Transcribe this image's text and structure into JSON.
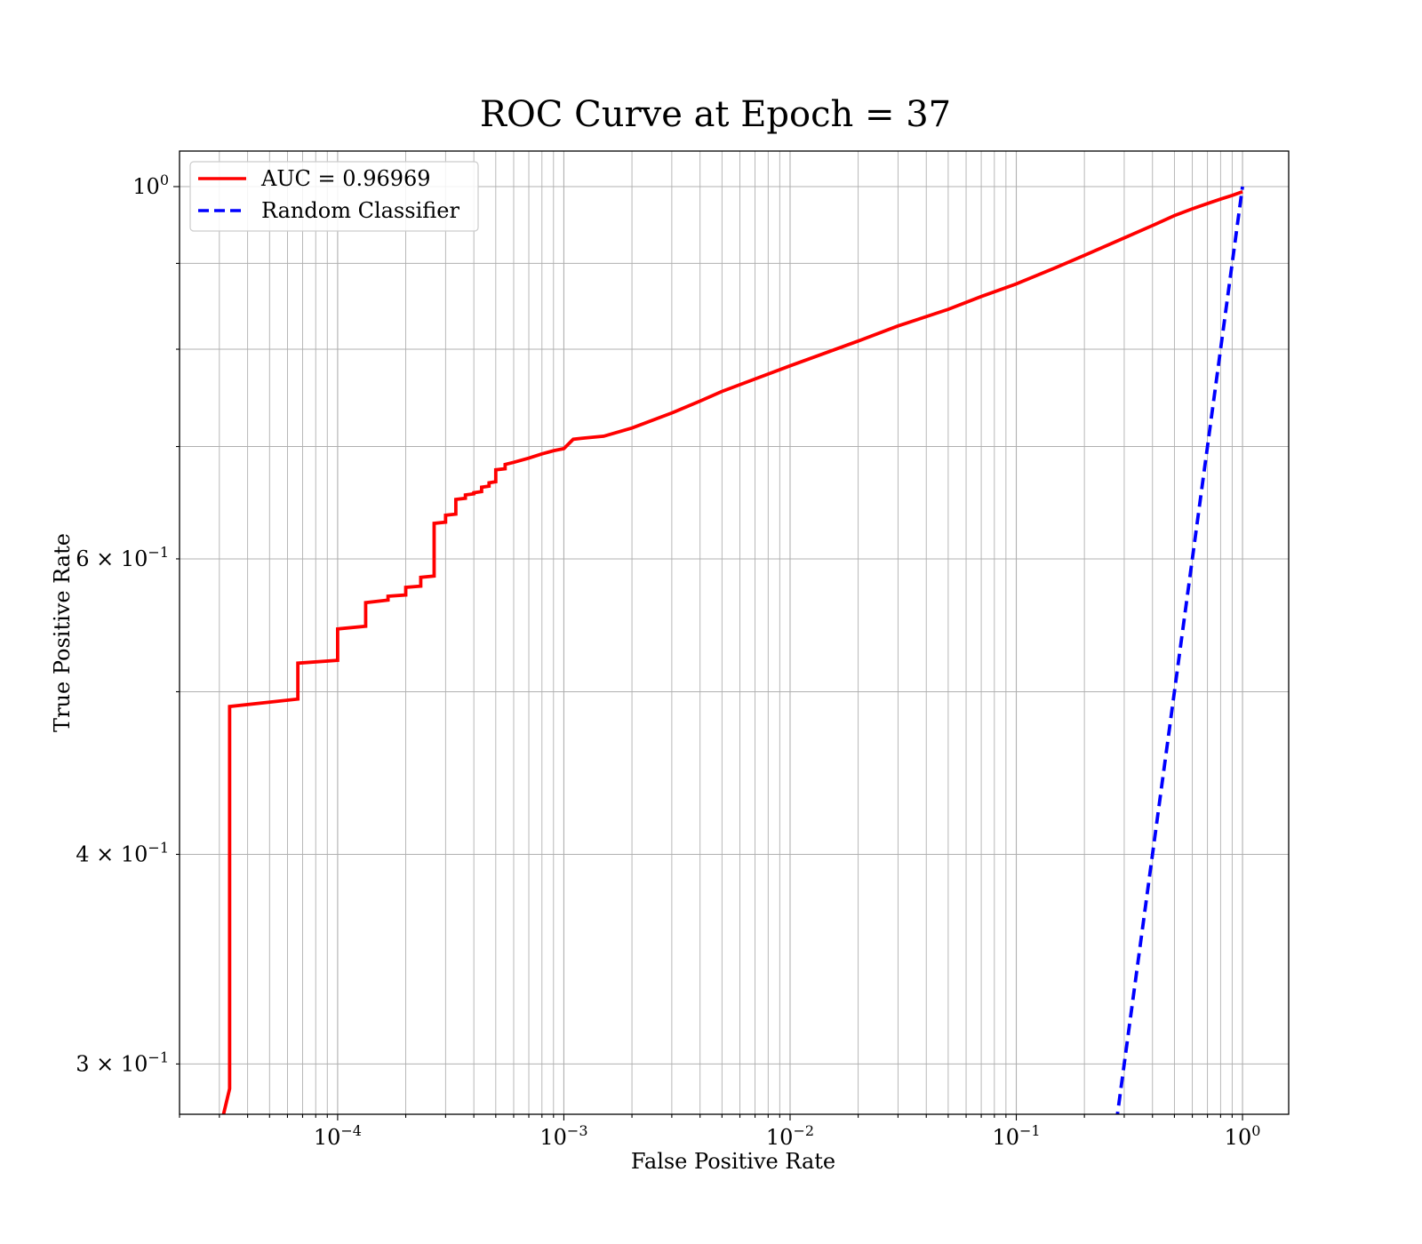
{
  "chart_data": {
    "type": "line",
    "title": "ROC Curve at Epoch = 37",
    "xlabel": "False Positive Rate",
    "ylabel": "True Positive Rate",
    "xscale": "log",
    "yscale": "log",
    "xlim": [
      2e-05,
      1.6
    ],
    "ylim": [
      0.28,
      1.05
    ],
    "grid": "both major and minor",
    "legend_position": "top-left",
    "x_ticks": [
      {
        "value": 0.0001,
        "base": "10",
        "exp": "−4"
      },
      {
        "value": 0.001,
        "base": "10",
        "exp": "−3"
      },
      {
        "value": 0.01,
        "base": "10",
        "exp": "−2"
      },
      {
        "value": 0.1,
        "base": "10",
        "exp": "−1"
      },
      {
        "value": 1,
        "base": "10",
        "exp": "0"
      }
    ],
    "y_ticks": [
      {
        "value": 0.3,
        "base": "3 × 10",
        "exp": "−1"
      },
      {
        "value": 0.4,
        "base": "4 × 10",
        "exp": "−1"
      },
      {
        "value": 0.6,
        "base": "6 × 10",
        "exp": "−1"
      },
      {
        "value": 1.0,
        "base": "10",
        "exp": "0"
      }
    ],
    "series": [
      {
        "name": "AUC = 0.96969",
        "color": "#ff0000",
        "style": "solid",
        "x": [
          3.13e-05,
          3.33e-05,
          3.33e-05,
          6.67e-05,
          6.67e-05,
          0.0001,
          0.0001,
          0.000133,
          0.000133,
          0.000167,
          0.000167,
          0.0002,
          0.0002,
          0.000233,
          0.000233,
          0.000267,
          0.000267,
          0.0003,
          0.0003,
          0.000333,
          0.000333,
          0.000367,
          0.000367,
          0.0004,
          0.0004,
          0.000433,
          0.000433,
          0.000467,
          0.000467,
          0.0005,
          0.0005,
          0.00055,
          0.00055,
          0.0006,
          0.0007,
          0.0008,
          0.0009,
          0.001,
          0.0011,
          0.0012,
          0.0015,
          0.002,
          0.003,
          0.004,
          0.005,
          0.007,
          0.01,
          0.02,
          0.03,
          0.05,
          0.07,
          0.1,
          0.15,
          0.2,
          0.3,
          0.4,
          0.5,
          0.6,
          0.7,
          0.8,
          0.9,
          1.0
        ],
        "y": [
          0.28,
          0.29,
          0.49,
          0.495,
          0.52,
          0.522,
          0.545,
          0.547,
          0.565,
          0.567,
          0.57,
          0.571,
          0.577,
          0.578,
          0.585,
          0.586,
          0.63,
          0.631,
          0.637,
          0.638,
          0.651,
          0.652,
          0.655,
          0.656,
          0.657,
          0.658,
          0.662,
          0.663,
          0.666,
          0.667,
          0.678,
          0.679,
          0.683,
          0.685,
          0.689,
          0.693,
          0.696,
          0.698,
          0.707,
          0.708,
          0.71,
          0.718,
          0.733,
          0.745,
          0.755,
          0.768,
          0.782,
          0.809,
          0.826,
          0.845,
          0.86,
          0.875,
          0.895,
          0.91,
          0.932,
          0.948,
          0.961,
          0.97,
          0.977,
          0.983,
          0.988,
          0.993
        ]
      },
      {
        "name": "Random Classifier",
        "color": "#0000ff",
        "style": "dashed",
        "x": [
          0.27,
          0.3,
          0.4,
          0.5,
          0.6,
          0.7,
          0.8,
          0.9,
          1.0
        ],
        "y": [
          0.27,
          0.3,
          0.4,
          0.5,
          0.6,
          0.7,
          0.8,
          0.9,
          1.0
        ]
      }
    ]
  }
}
